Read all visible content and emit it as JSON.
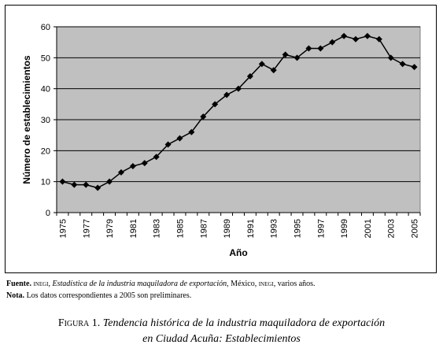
{
  "chart_data": {
    "type": "line",
    "title": "",
    "xlabel": "Año",
    "ylabel": "Número de establecimientos",
    "ylim": [
      0,
      60
    ],
    "yticks": [
      0,
      10,
      20,
      30,
      40,
      50,
      60
    ],
    "x_tick_labels": [
      "1975",
      "1977",
      "1979",
      "1981",
      "1983",
      "1985",
      "1987",
      "1989",
      "1991",
      "1993",
      "1995",
      "1997",
      "1999",
      "2001",
      "2003",
      "2005"
    ],
    "grid": "horizontal",
    "plot_background": "#c0c0c0",
    "line_color": "#000000",
    "marker": "diamond",
    "series": [
      {
        "x": [
          1975,
          1976,
          1977,
          1978,
          1979,
          1980,
          1981,
          1982,
          1983,
          1984,
          1985,
          1986,
          1987,
          1988,
          1989,
          1990,
          1991,
          1992,
          1993,
          1994,
          1995,
          1996,
          1997,
          1998,
          1999,
          2000,
          2001,
          2002,
          2003,
          2004,
          2005
        ],
        "values": [
          10,
          9,
          9,
          8,
          10,
          13,
          15,
          16,
          18,
          22,
          24,
          26,
          31,
          35,
          38,
          40,
          44,
          48,
          46,
          51,
          50,
          53,
          53,
          55,
          57,
          56,
          57,
          56,
          50,
          48,
          47
        ]
      }
    ]
  },
  "notes": {
    "fuente_label": "Fuente.",
    "fuente_src": "inegi",
    "fuente_sep1": ", ",
    "fuente_title": "Estadística de la industria maquiladora de exportación",
    "fuente_sep2": ", México, ",
    "fuente_src2": "inegi",
    "fuente_tail": ", varios años.",
    "nota_label": "Nota.",
    "nota_text": " Los datos correspondientes a 2005 son preliminares."
  },
  "caption": {
    "figure_label": "Figura 1.",
    "line1": "Tendencia histórica de la industria maquiladora de exportación",
    "line2": "en Ciudad Acuña: Establecimientos"
  }
}
